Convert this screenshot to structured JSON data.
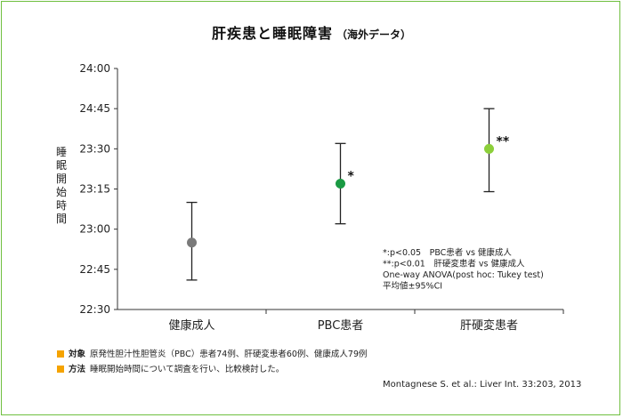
{
  "header": {
    "title": "肝疾患と睡眠障害",
    "subtitle": "（海外データ）"
  },
  "chart_data": {
    "type": "scatter",
    "ylabel": "睡眠開始時間",
    "yticks": [
      "24:00",
      "24:45",
      "23:30",
      "23:15",
      "23:00",
      "22:45",
      "22:30"
    ],
    "categories": [
      "健康成人",
      "PBC患者",
      "肝硬変患者"
    ],
    "series": [
      {
        "values": [
          "22:55",
          "23:17",
          "23:30"
        ],
        "ci_low": [
          "22:41",
          "23:02",
          "23:14"
        ],
        "ci_high": [
          "23:10",
          "23:32",
          "23:45"
        ],
        "colors": [
          "#7a7a7a",
          "#1a9a43",
          "#8ccf3a"
        ],
        "significance": [
          "",
          "*",
          "**"
        ]
      }
    ],
    "annotations": [
      "*:p<0.05　PBC患者 vs 健康成人",
      "**:p<0.01　肝硬変患者 vs 健康成人",
      "One-way ANOVA(post hoc: Tukey test)",
      "平均値±95%CI"
    ],
    "grid": false
  },
  "notes": [
    {
      "key": "対象",
      "text": "原発性胆汁性胆管炎（PBC）患者74例、肝硬変患者60例、健康成人79例"
    },
    {
      "key": "方法",
      "text": "睡眠開始時間について調査を行い、比較検討した。"
    }
  ],
  "citation": "Montagnese S. et al.: Liver Int. 33:203, 2013",
  "colors": {
    "frame": "#6fbf3f",
    "bullet": "#f5a300"
  }
}
